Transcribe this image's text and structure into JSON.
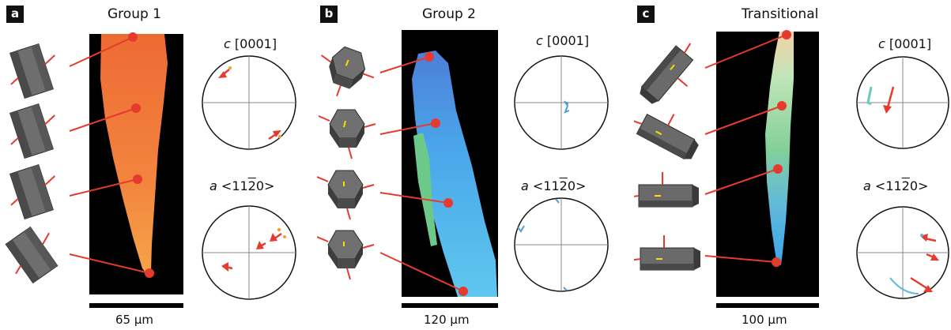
{
  "panels": [
    {
      "tag": "a",
      "title": "Group 1",
      "scale_bar": "65 µm",
      "pole_figure_c": {
        "prefix": "c",
        "suffix": "[0001]"
      },
      "pole_figure_a": {
        "prefix": "a",
        "label_pre": "<11",
        "label_over": "2",
        "label_post": "0>"
      }
    },
    {
      "tag": "b",
      "title": "Group 2",
      "scale_bar": "120 µm",
      "pole_figure_c": {
        "prefix": "c",
        "suffix": "[0001]"
      },
      "pole_figure_a": {
        "prefix": "a",
        "label_pre": "<11",
        "label_over": "2",
        "label_post": "0>"
      }
    },
    {
      "tag": "c",
      "title": "Transitional",
      "scale_bar": "100 µm",
      "pole_figure_c": {
        "prefix": "c",
        "suffix": "[0001]"
      },
      "pole_figure_a": {
        "prefix": "a",
        "label_pre": "<11",
        "label_over": "2",
        "label_post": "0>"
      }
    }
  ],
  "colors": {
    "marker": "#e53b2e",
    "map_background": "#000000",
    "group1_grain": "#f07a3a",
    "group2_grain": "#4aa8e8",
    "transitional_grain": "#7fd0a0",
    "crystal": "#666666"
  }
}
